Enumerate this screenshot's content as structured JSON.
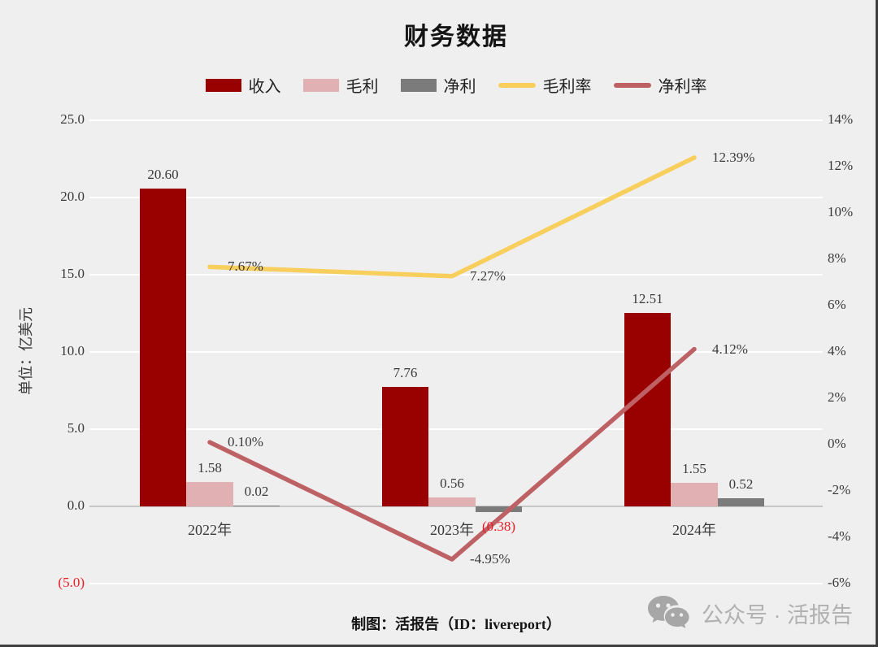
{
  "title": "财务数据",
  "footer": "制图：活报告（ID：livereport）",
  "watermark": {
    "icon": "wechat-icon",
    "text": "公众号 · 活报告"
  },
  "colors": {
    "background": "#f0eff0",
    "gridline": "#ffffff",
    "zeroline": "#c7c7c7",
    "revenue": "#990100",
    "gross": "#e0b0b3",
    "net": "#7b7b7b",
    "grossMargin": "#f8cf5c",
    "netMargin": "#bd6164",
    "label": "#3a3a3a",
    "negative": "#ed1c24",
    "watermark": "#b1b1b1"
  },
  "legend": [
    {
      "label": "收入",
      "type": "bar",
      "color_key": "revenue"
    },
    {
      "label": "毛利",
      "type": "bar",
      "color_key": "gross"
    },
    {
      "label": "净利",
      "type": "bar",
      "color_key": "net"
    },
    {
      "label": "毛利率",
      "type": "line",
      "color_key": "grossMargin"
    },
    {
      "label": "净利率",
      "type": "line",
      "color_key": "netMargin"
    }
  ],
  "y_left": {
    "unit_label": "单位：亿美元"
  },
  "chart_data": {
    "type": "combo bar+line",
    "title": "财务数据",
    "categories": [
      "2022年",
      "2023年",
      "2024年"
    ],
    "bar_series": [
      {
        "name": "收入",
        "values": [
          20.6,
          7.76,
          12.51
        ],
        "labels": [
          "20.60",
          "7.76",
          "12.51"
        ],
        "color_key": "revenue"
      },
      {
        "name": "毛利",
        "values": [
          1.58,
          0.56,
          1.55
        ],
        "labels": [
          "1.58",
          "0.56",
          "1.55"
        ],
        "color_key": "gross"
      },
      {
        "name": "净利",
        "values": [
          0.02,
          -0.38,
          0.52
        ],
        "labels": [
          "0.02",
          "(0.38)",
          "0.52"
        ],
        "color_key": "net"
      }
    ],
    "line_series": [
      {
        "name": "毛利率",
        "values": [
          7.67,
          7.27,
          12.39
        ],
        "labels": [
          "7.67%",
          "7.27%",
          "12.39%"
        ],
        "color_key": "grossMargin",
        "axis": "right"
      },
      {
        "name": "净利率",
        "values": [
          0.1,
          -4.95,
          4.12
        ],
        "labels": [
          "0.10%",
          "-4.95%",
          "4.12%"
        ],
        "color_key": "netMargin",
        "axis": "right"
      }
    ],
    "ylim_left": [
      -5,
      25
    ],
    "ylim_right": [
      -6,
      14
    ],
    "left_axis_label": "单位：亿美元",
    "left_tick_values": [
      25,
      20,
      15,
      10,
      5,
      0,
      -5
    ],
    "left_tick_labels": [
      "25.0",
      "20.0",
      "15.0",
      "10.0",
      "5.0",
      "0.0",
      "(5.0)"
    ],
    "right_tick_values": [
      14,
      12,
      10,
      8,
      6,
      4,
      2,
      0,
      -2,
      -4,
      -6
    ],
    "right_tick_labels": [
      "14%",
      "12%",
      "10%",
      "8%",
      "6%",
      "4%",
      "2%",
      "0%",
      "-2%",
      "-4%",
      "-6%"
    ],
    "legend_position": "top",
    "grid": "horizontal gridlines at left-axis ticks; zero line darker"
  }
}
